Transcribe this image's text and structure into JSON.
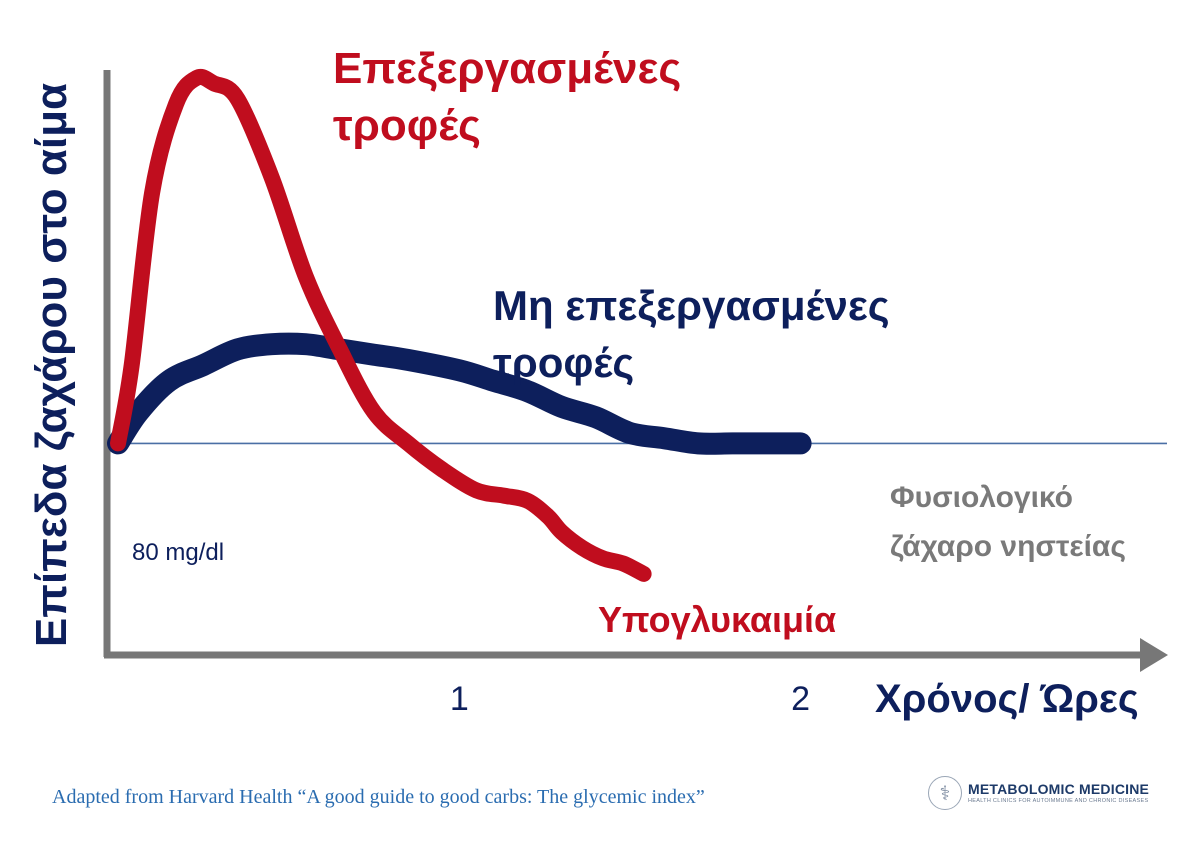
{
  "chart_data": {
    "type": "line",
    "ylabel": "Επίπεδα ζαχάρου στο αίμα",
    "xlabel": "Χρόνος/ Ώρες",
    "x_ticks": [
      1,
      2
    ],
    "xlim": [
      0,
      2.13
    ],
    "ylim": [
      0,
      1
    ],
    "reference_line": {
      "label": "80 mg/dl",
      "y": 0.3
    },
    "series": [
      {
        "name": "Επεξεργασμένες τροφές",
        "color": "#c00d1e",
        "x": [
          0,
          0.04,
          0.1,
          0.17,
          0.23,
          0.28,
          0.35,
          0.45,
          0.55,
          0.65,
          0.75,
          0.85,
          0.95,
          1.05,
          1.13,
          1.2,
          1.26,
          1.3,
          1.36,
          1.42,
          1.48,
          1.54
        ],
        "y": [
          0.3,
          0.45,
          0.78,
          0.95,
          1.0,
          0.99,
          0.96,
          0.81,
          0.62,
          0.48,
          0.36,
          0.3,
          0.25,
          0.21,
          0.2,
          0.19,
          0.16,
          0.13,
          0.1,
          0.08,
          0.07,
          0.05
        ]
      },
      {
        "name": "Μη επεξεργασμένες τροφές",
        "color": "#0d1f5c",
        "x": [
          0,
          0.06,
          0.15,
          0.25,
          0.35,
          0.45,
          0.55,
          0.65,
          0.75,
          0.85,
          1.0,
          1.1,
          1.2,
          1.3,
          1.4,
          1.5,
          1.6,
          1.7,
          1.8,
          1.9,
          2.0
        ],
        "y": [
          0.3,
          0.36,
          0.42,
          0.45,
          0.48,
          0.49,
          0.49,
          0.48,
          0.47,
          0.46,
          0.44,
          0.42,
          0.4,
          0.37,
          0.35,
          0.32,
          0.31,
          0.3,
          0.3,
          0.3,
          0.3
        ]
      }
    ],
    "annotations": {
      "hypoglycemia": "Υπογλυκαιμία",
      "fasting_line1": "Φυσιολογικό",
      "fasting_line2": "ζάχαρο νηστείας",
      "red_label_line1": "Επεξεργασμένες",
      "red_label_line2": "τροφές",
      "blue_label_line1": "Μη επεξεργασμένες",
      "blue_label_line2": "τροφές"
    },
    "colors": {
      "axis": "#777777",
      "reference": "#4a6fa5",
      "fasting_text": "#7a7a7a"
    }
  },
  "footer": {
    "source": "Adapted from Harvard Health “A good guide to good carbs: The glycemic index”",
    "logo_name": "METABOLOMIC MEDICINE",
    "logo_tagline": "HEALTH CLINICS FOR AUTOIMMUNE AND CHRONIC DISEASES",
    "logo_icon": "caduceus-icon"
  }
}
